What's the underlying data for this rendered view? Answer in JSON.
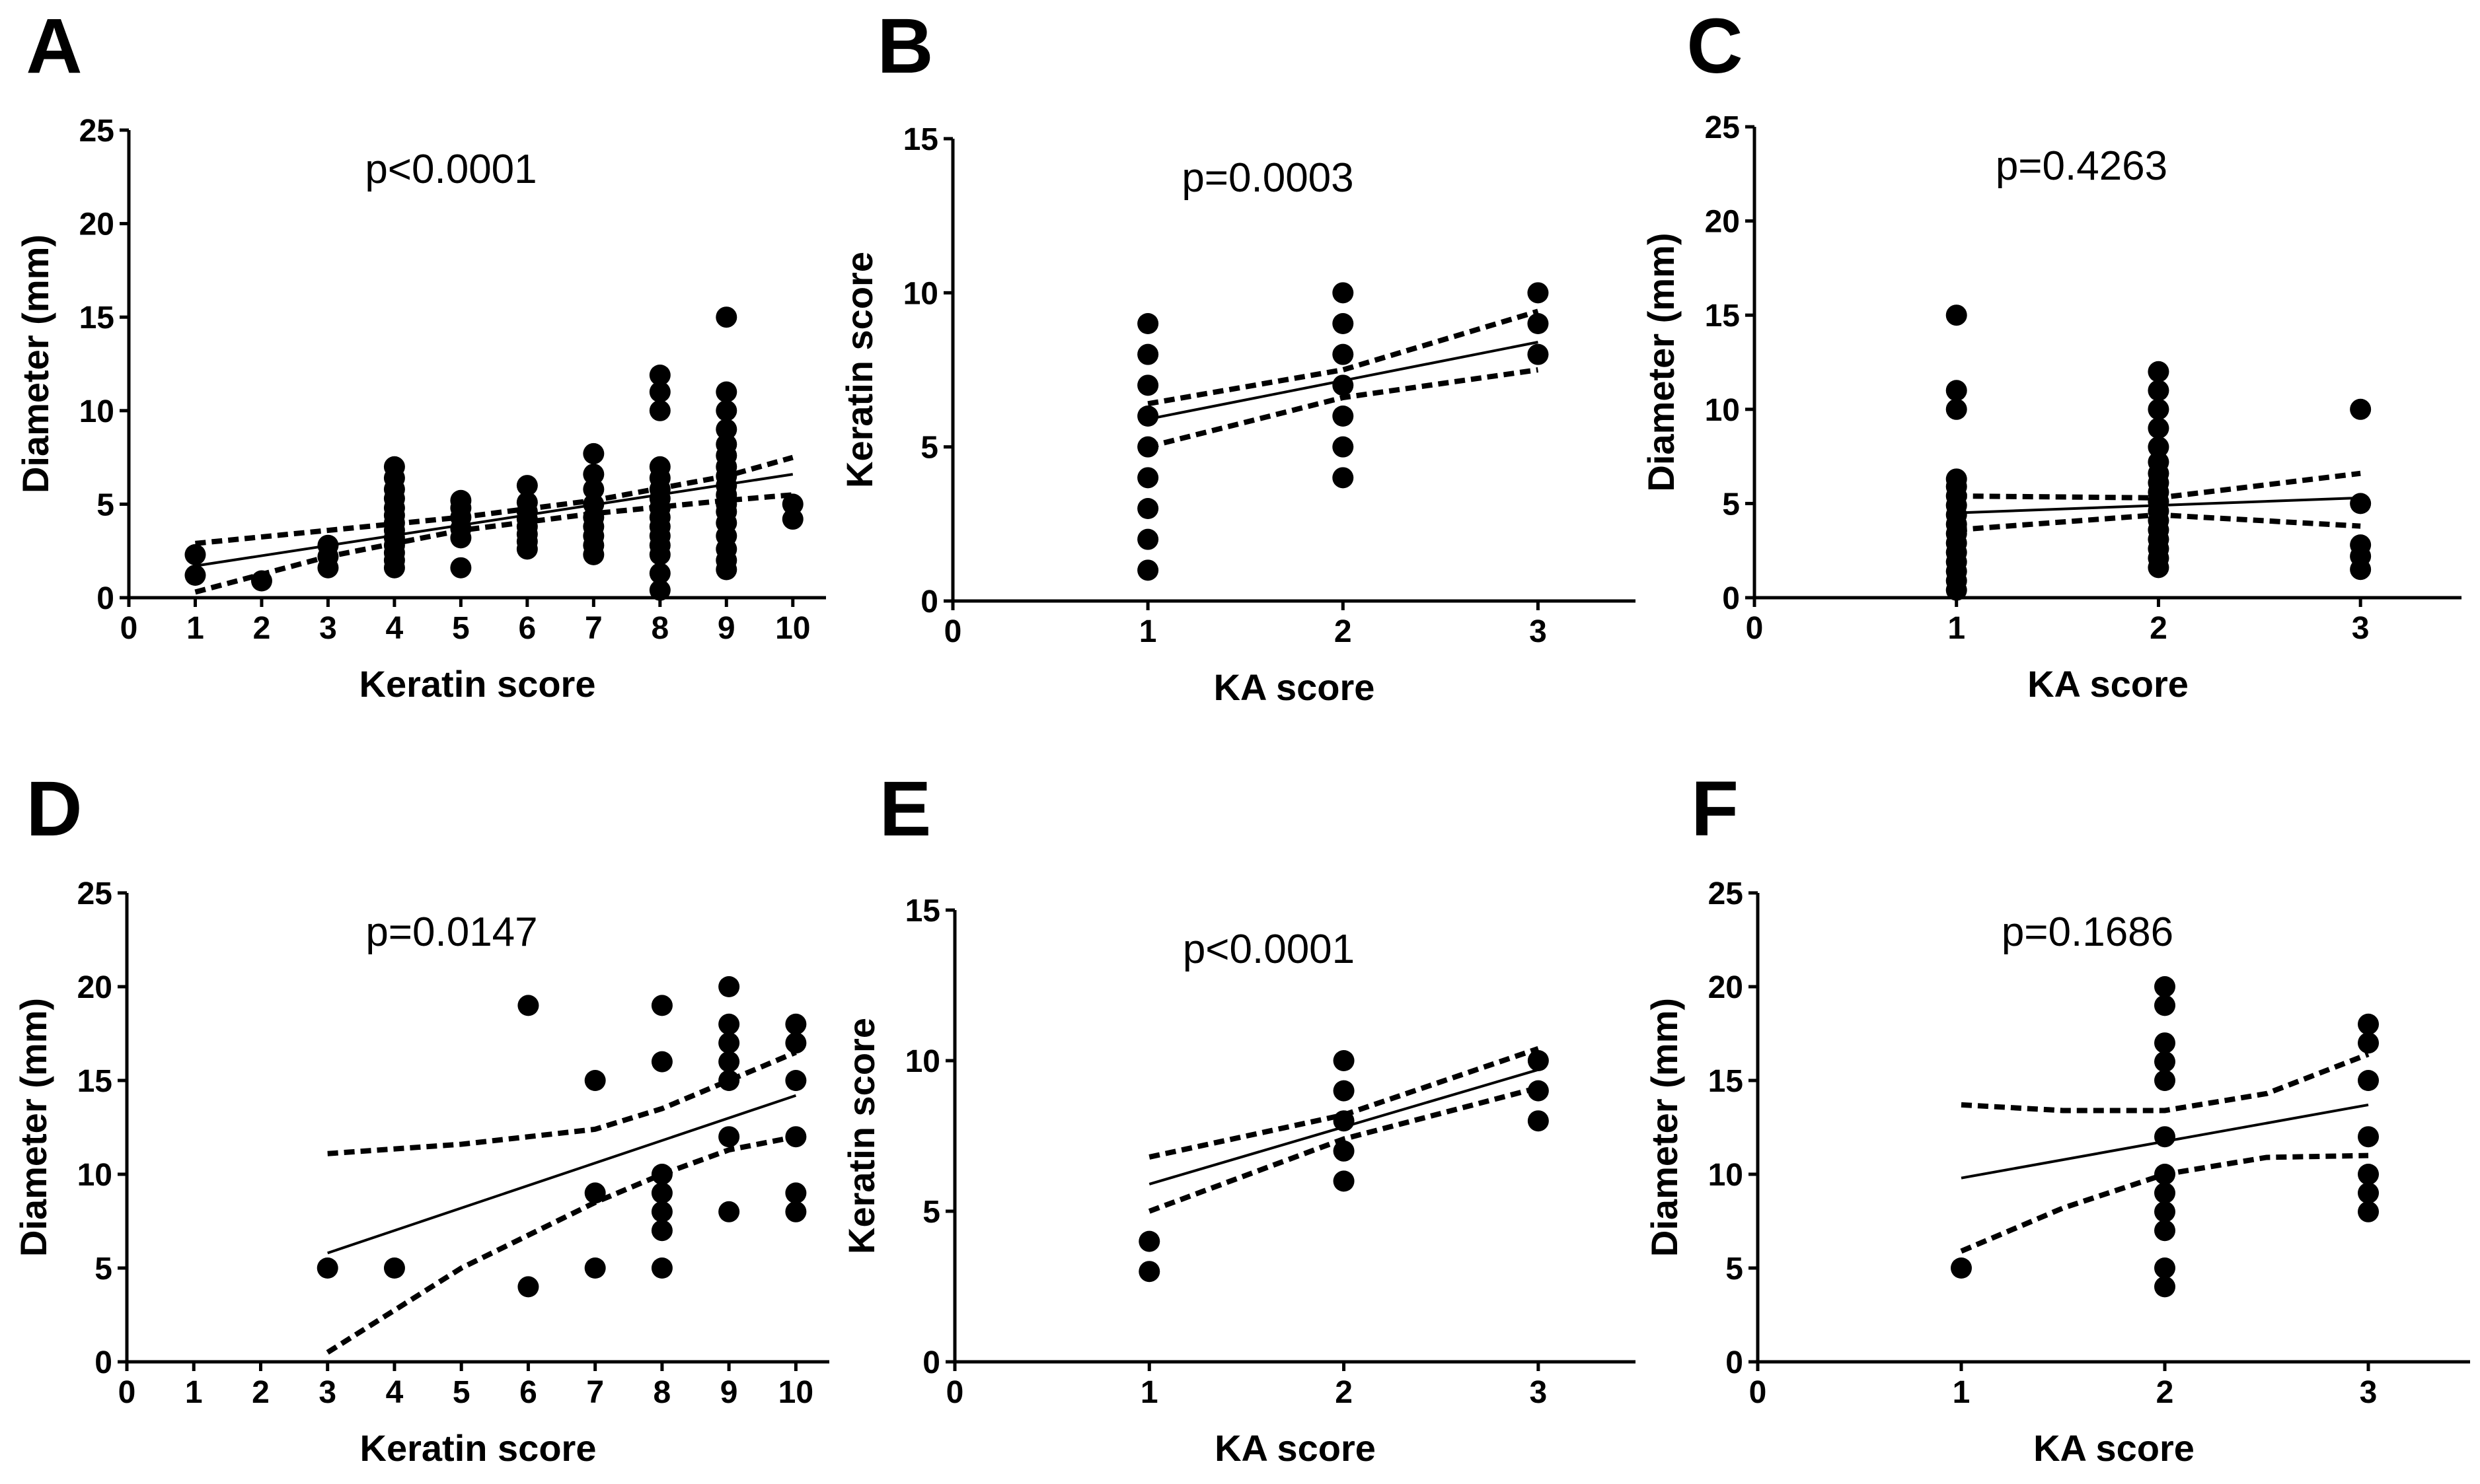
{
  "chart_data": [
    {
      "panel": "A",
      "type": "scatter",
      "annotation": "p<0.0001",
      "xlabel": "Keratin score",
      "ylabel": "Diameter (mm)",
      "xlim": [
        0,
        10.5
      ],
      "ylim": [
        0,
        25
      ],
      "xticks": [
        0,
        1,
        2,
        3,
        4,
        5,
        6,
        7,
        8,
        9,
        10
      ],
      "yticks": [
        0,
        5,
        10,
        15,
        20,
        25
      ],
      "points": [
        [
          1,
          1.2
        ],
        [
          1,
          2.3
        ],
        [
          2,
          0.9
        ],
        [
          3,
          1.6
        ],
        [
          3,
          2.2
        ],
        [
          3,
          2.8
        ],
        [
          4,
          1.6
        ],
        [
          4,
          2.0
        ],
        [
          4,
          2.4
        ],
        [
          4,
          2.8
        ],
        [
          4,
          3.2
        ],
        [
          4,
          3.6
        ],
        [
          4,
          4.0
        ],
        [
          4,
          4.4
        ],
        [
          4,
          4.8
        ],
        [
          4,
          5.3
        ],
        [
          4,
          5.8
        ],
        [
          4,
          6.4
        ],
        [
          4,
          7.0
        ],
        [
          5,
          1.6
        ],
        [
          5,
          3.2
        ],
        [
          5,
          3.7
        ],
        [
          5,
          4.3
        ],
        [
          5,
          4.8
        ],
        [
          5,
          5.2
        ],
        [
          6,
          2.6
        ],
        [
          6,
          3.0
        ],
        [
          6,
          3.4
        ],
        [
          6,
          3.8
        ],
        [
          6,
          4.2
        ],
        [
          6,
          4.6
        ],
        [
          6,
          5.1
        ],
        [
          6,
          6.0
        ],
        [
          7,
          2.3
        ],
        [
          7,
          2.8
        ],
        [
          7,
          3.3
        ],
        [
          7,
          3.8
        ],
        [
          7,
          4.3
        ],
        [
          7,
          5.0
        ],
        [
          7,
          5.8
        ],
        [
          7,
          6.6
        ],
        [
          7,
          7.7
        ],
        [
          8,
          0.4
        ],
        [
          8,
          1.3
        ],
        [
          8,
          2.3
        ],
        [
          8,
          2.8
        ],
        [
          8,
          3.3
        ],
        [
          8,
          3.8
        ],
        [
          8,
          4.3
        ],
        [
          8,
          4.8
        ],
        [
          8,
          5.3
        ],
        [
          8,
          5.8
        ],
        [
          8,
          6.4
        ],
        [
          8,
          7.0
        ],
        [
          8,
          10.0
        ],
        [
          8,
          11.0
        ],
        [
          8,
          11.9
        ],
        [
          9,
          1.5
        ],
        [
          9,
          2.0
        ],
        [
          9,
          2.6
        ],
        [
          9,
          3.3
        ],
        [
          9,
          4.0
        ],
        [
          9,
          4.6
        ],
        [
          9,
          5.0
        ],
        [
          9,
          5.5
        ],
        [
          9,
          6.0
        ],
        [
          9,
          6.5
        ],
        [
          9,
          7.0
        ],
        [
          9,
          7.6
        ],
        [
          9,
          8.2
        ],
        [
          9,
          9.0
        ],
        [
          9,
          10.0
        ],
        [
          9,
          11.0
        ],
        [
          9,
          15.0
        ],
        [
          10,
          4.2
        ],
        [
          10,
          5.0
        ]
      ],
      "fit": {
        "x": [
          1,
          10
        ],
        "y": [
          1.7,
          6.6
        ]
      },
      "ci_upper": {
        "x": [
          1,
          3,
          5,
          7,
          9,
          10
        ],
        "y": [
          2.9,
          3.6,
          4.3,
          5.2,
          6.5,
          7.5
        ]
      },
      "ci_lower": {
        "x": [
          1,
          3,
          5,
          7,
          9,
          10
        ],
        "y": [
          0.3,
          2.2,
          3.6,
          4.5,
          5.2,
          5.5
        ]
      }
    },
    {
      "panel": "B",
      "type": "scatter",
      "annotation": "p=0.0003",
      "xlabel": "KA score",
      "ylabel": "Keratin score",
      "xlim": [
        0,
        3.5
      ],
      "ylim": [
        0,
        15
      ],
      "xticks": [
        0,
        1,
        2,
        3
      ],
      "yticks": [
        0,
        5,
        10,
        15
      ],
      "points": [
        [
          1,
          1
        ],
        [
          1,
          2
        ],
        [
          1,
          3
        ],
        [
          1,
          4
        ],
        [
          1,
          5
        ],
        [
          1,
          6
        ],
        [
          1,
          7
        ],
        [
          1,
          8
        ],
        [
          1,
          9
        ],
        [
          2,
          4
        ],
        [
          2,
          5
        ],
        [
          2,
          6
        ],
        [
          2,
          7
        ],
        [
          2,
          8
        ],
        [
          2,
          9
        ],
        [
          2,
          10
        ],
        [
          3,
          8
        ],
        [
          3,
          9
        ],
        [
          3,
          10
        ]
      ],
      "fit": {
        "x": [
          1,
          3
        ],
        "y": [
          5.9,
          8.4
        ]
      },
      "ci_upper": {
        "x": [
          1,
          2,
          3
        ],
        "y": [
          6.4,
          7.5,
          9.4
        ]
      },
      "ci_lower": {
        "x": [
          1,
          2,
          3
        ],
        "y": [
          5.0,
          6.6,
          7.5
        ]
      }
    },
    {
      "panel": "C",
      "type": "scatter",
      "annotation": "p=0.4263",
      "xlabel": "KA score",
      "ylabel": "Diameter (mm)",
      "xlim": [
        0,
        3.5
      ],
      "ylim": [
        0,
        25
      ],
      "xticks": [
        0,
        1,
        2,
        3
      ],
      "yticks": [
        0,
        5,
        10,
        15,
        20,
        25
      ],
      "points": [
        [
          1,
          0.4
        ],
        [
          1,
          0.9
        ],
        [
          1,
          1.4
        ],
        [
          1,
          1.9
        ],
        [
          1,
          2.4
        ],
        [
          1,
          2.9
        ],
        [
          1,
          3.4
        ],
        [
          1,
          3.9
        ],
        [
          1,
          4.4
        ],
        [
          1,
          4.9
        ],
        [
          1,
          5.4
        ],
        [
          1,
          5.9
        ],
        [
          1,
          6.3
        ],
        [
          1,
          10.0
        ],
        [
          1,
          11.0
        ],
        [
          1,
          15.0
        ],
        [
          2,
          1.6
        ],
        [
          2,
          2.1
        ],
        [
          2,
          2.6
        ],
        [
          2,
          3.1
        ],
        [
          2,
          3.6
        ],
        [
          2,
          4.1
        ],
        [
          2,
          4.6
        ],
        [
          2,
          5.1
        ],
        [
          2,
          5.6
        ],
        [
          2,
          6.1
        ],
        [
          2,
          6.6
        ],
        [
          2,
          7.2
        ],
        [
          2,
          8.0
        ],
        [
          2,
          9.0
        ],
        [
          2,
          10.0
        ],
        [
          2,
          11.0
        ],
        [
          2,
          12.0
        ],
        [
          3,
          1.5
        ],
        [
          3,
          2.2
        ],
        [
          3,
          2.8
        ],
        [
          3,
          5.0
        ],
        [
          3,
          10.0
        ]
      ],
      "fit": {
        "x": [
          1,
          3
        ],
        "y": [
          4.5,
          5.3
        ]
      },
      "ci_upper": {
        "x": [
          1,
          2,
          3
        ],
        "y": [
          5.4,
          5.3,
          6.6
        ]
      },
      "ci_lower": {
        "x": [
          1,
          2,
          3
        ],
        "y": [
          3.6,
          4.4,
          3.8
        ]
      }
    },
    {
      "panel": "D",
      "type": "scatter",
      "annotation": "p=0.0147",
      "xlabel": "Keratin score",
      "ylabel": "Diameter (mm)",
      "xlim": [
        0,
        10.5
      ],
      "ylim": [
        0,
        25
      ],
      "xticks": [
        0,
        1,
        2,
        3,
        4,
        5,
        6,
        7,
        8,
        9,
        10
      ],
      "yticks": [
        0,
        5,
        10,
        15,
        20,
        25
      ],
      "points": [
        [
          3,
          5
        ],
        [
          4,
          5
        ],
        [
          6,
          4
        ],
        [
          6,
          19
        ],
        [
          7,
          5
        ],
        [
          7,
          9
        ],
        [
          7,
          15
        ],
        [
          8,
          5
        ],
        [
          8,
          7
        ],
        [
          8,
          8
        ],
        [
          8,
          9
        ],
        [
          8,
          10
        ],
        [
          8,
          16
        ],
        [
          8,
          19
        ],
        [
          9,
          8
        ],
        [
          9,
          12
        ],
        [
          9,
          15
        ],
        [
          9,
          16
        ],
        [
          9,
          17
        ],
        [
          9,
          18
        ],
        [
          9,
          20
        ],
        [
          10,
          8
        ],
        [
          10,
          9
        ],
        [
          10,
          12
        ],
        [
          10,
          15
        ],
        [
          10,
          17
        ],
        [
          10,
          18
        ]
      ],
      "fit": {
        "x": [
          3,
          10
        ],
        "y": [
          5.8,
          14.2
        ]
      },
      "ci_upper": {
        "x": [
          3,
          5,
          7,
          8,
          9,
          10
        ],
        "y": [
          11.1,
          11.6,
          12.4,
          13.5,
          15.0,
          16.5
        ]
      },
      "ci_lower": {
        "x": [
          3,
          5,
          7,
          8,
          9,
          10
        ],
        "y": [
          0.5,
          5.0,
          8.5,
          10.0,
          11.3,
          12.0
        ]
      }
    },
    {
      "panel": "E",
      "type": "scatter",
      "annotation": "p<0.0001",
      "xlabel": "KA score",
      "ylabel": "Keratin score",
      "xlim": [
        0,
        3.5
      ],
      "ylim": [
        0,
        15
      ],
      "xticks": [
        0,
        1,
        2,
        3
      ],
      "yticks": [
        0,
        5,
        10,
        15
      ],
      "points": [
        [
          1,
          3
        ],
        [
          1,
          4
        ],
        [
          2,
          6
        ],
        [
          2,
          7
        ],
        [
          2,
          8
        ],
        [
          2,
          9
        ],
        [
          2,
          10
        ],
        [
          3,
          8
        ],
        [
          3,
          9
        ],
        [
          3,
          10
        ]
      ],
      "fit": {
        "x": [
          1,
          3
        ],
        "y": [
          5.9,
          9.7
        ]
      },
      "ci_upper": {
        "x": [
          1,
          2,
          3
        ],
        "y": [
          6.8,
          8.2,
          10.4
        ]
      },
      "ci_lower": {
        "x": [
          1,
          2,
          3
        ],
        "y": [
          5.0,
          7.4,
          9.1
        ]
      }
    },
    {
      "panel": "F",
      "type": "scatter",
      "annotation": "p=0.1686",
      "xlabel": "KA score",
      "ylabel": "Diameter (mm)",
      "xlim": [
        0,
        3.5
      ],
      "ylim": [
        0,
        25
      ],
      "xticks": [
        0,
        1,
        2,
        3
      ],
      "yticks": [
        0,
        5,
        10,
        15,
        20,
        25
      ],
      "points": [
        [
          1,
          5
        ],
        [
          2,
          4
        ],
        [
          2,
          5
        ],
        [
          2,
          7
        ],
        [
          2,
          8
        ],
        [
          2,
          9
        ],
        [
          2,
          10
        ],
        [
          2,
          12
        ],
        [
          2,
          15
        ],
        [
          2,
          16
        ],
        [
          2,
          17
        ],
        [
          2,
          19
        ],
        [
          2,
          20
        ],
        [
          3,
          8
        ],
        [
          3,
          9
        ],
        [
          3,
          10
        ],
        [
          3,
          12
        ],
        [
          3,
          15
        ],
        [
          3,
          17
        ],
        [
          3,
          18
        ]
      ],
      "fit": {
        "x": [
          1,
          3
        ],
        "y": [
          9.8,
          13.7
        ]
      },
      "ci_upper": {
        "x": [
          1,
          1.5,
          2,
          2.5,
          3
        ],
        "y": [
          13.7,
          13.4,
          13.4,
          14.3,
          16.4
        ]
      },
      "ci_lower": {
        "x": [
          1,
          1.5,
          2,
          2.5,
          3
        ],
        "y": [
          5.9,
          8.2,
          10.0,
          10.9,
          11.0
        ]
      }
    }
  ]
}
